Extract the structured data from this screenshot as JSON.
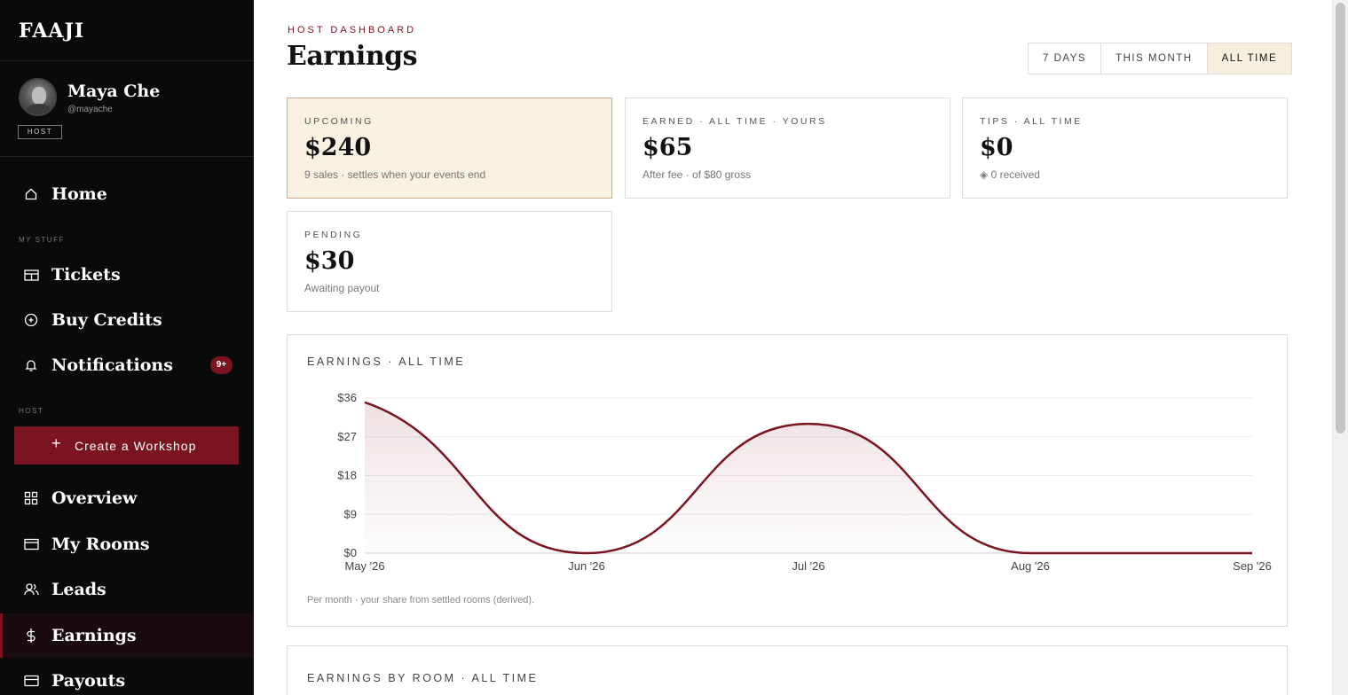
{
  "brand": "FAAJI",
  "user": {
    "name": "Maya Che",
    "handle": "@mayache",
    "role": "HOST"
  },
  "sidebar": {
    "home": {
      "label": "Home",
      "icon": "home-icon"
    },
    "section_my_stuff": "MY STUFF",
    "tickets": {
      "label": "Tickets",
      "icon": "ticket-icon"
    },
    "buy_credits": {
      "label": "Buy Credits",
      "icon": "plus-circle-icon"
    },
    "notifications": {
      "label": "Notifications",
      "icon": "bell-icon",
      "badge": "9+"
    },
    "section_host": "HOST",
    "create_workshop": {
      "label": "Create a Workshop",
      "icon": "plus-icon"
    },
    "overview": {
      "label": "Overview",
      "icon": "grid-icon"
    },
    "my_rooms": {
      "label": "My Rooms",
      "icon": "window-icon"
    },
    "leads": {
      "label": "Leads",
      "icon": "users-icon"
    },
    "earnings": {
      "label": "Earnings",
      "icon": "dollar-icon",
      "active": true
    },
    "payouts": {
      "label": "Payouts",
      "icon": "card-icon"
    }
  },
  "header": {
    "eyebrow": "HOST DASHBOARD",
    "title": "Earnings"
  },
  "range_tabs": {
    "items": [
      "7 DAYS",
      "THIS MONTH",
      "ALL TIME"
    ],
    "selected": "ALL TIME"
  },
  "cards": {
    "upcoming": {
      "label": "UPCOMING",
      "value": "$240",
      "sub": "9 sales · settles when your events end"
    },
    "earned": {
      "label": "EARNED · ALL TIME · YOURS",
      "value": "$65",
      "sub": "After fee · of $80 gross"
    },
    "tips": {
      "label": "TIPS · ALL TIME",
      "value": "$0",
      "sub": "◈ 0 received"
    },
    "pending": {
      "label": "PENDING",
      "value": "$30",
      "sub": "Awaiting payout"
    }
  },
  "chart_panel": {
    "title": "EARNINGS · ALL TIME",
    "footnote": "Per month · your share from settled rooms (derived)."
  },
  "by_room_panel": {
    "title": "EARNINGS BY ROOM · ALL TIME"
  },
  "colors": {
    "accent": "#7a1420",
    "sidebar_bg": "#0a0a0a",
    "highlight_card": "#f8f0e0"
  },
  "chart_data": {
    "type": "line",
    "categories": [
      "May '26",
      "Jun '26",
      "Jul '26",
      "Aug '26",
      "Sep '26"
    ],
    "series": [
      {
        "values": [
          35,
          0,
          30,
          0,
          0
        ]
      }
    ],
    "y_ticks": [
      "$0",
      "$9",
      "$18",
      "$27",
      "$36"
    ],
    "ylim": [
      0,
      36
    ],
    "grid": true,
    "area_fill": true,
    "xlabel": "",
    "ylabel": ""
  }
}
